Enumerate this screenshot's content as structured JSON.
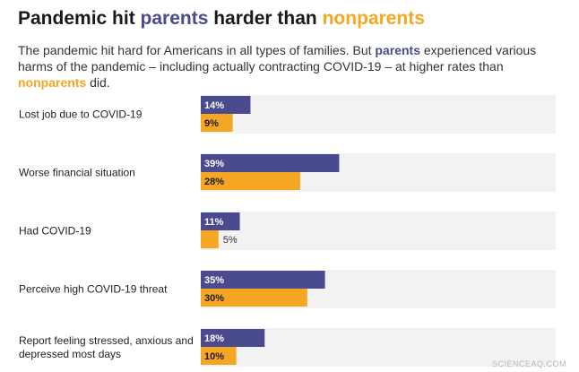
{
  "header": {
    "title_parts": [
      "Pandemic hit ",
      "parents",
      " harder than ",
      "nonparents"
    ],
    "subtitle_parts": [
      "The pandemic hit hard for Americans in all types of families. But ",
      "parents",
      " experienced various harms of the pandemic – including actually contracting COVID-19 – at higher rates than ",
      "nonparents",
      " did."
    ]
  },
  "colors": {
    "parents": "#4a4a8f",
    "nonparents": "#f5a623",
    "track": "#f2f2f2"
  },
  "chart_data": {
    "type": "bar",
    "orientation": "horizontal",
    "title": "Pandemic hit parents harder than nonparents",
    "categories": [
      [
        "Lost job due to COVID-19"
      ],
      [
        "Worse financial situation"
      ],
      [
        "Had COVID-19"
      ],
      [
        "Perceive high COVID-19 threat"
      ],
      [
        "Report feeling stressed, anxious and",
        "depressed most days"
      ]
    ],
    "series": [
      {
        "name": "parents",
        "values": [
          14,
          39,
          11,
          35,
          18
        ]
      },
      {
        "name": "nonparents",
        "values": [
          9,
          28,
          5,
          30,
          10
        ]
      }
    ],
    "value_suffix": "%",
    "xlim": [
      0,
      100
    ],
    "legend": "none",
    "grid": false
  },
  "watermark": "SCIENCEAQ.COM"
}
